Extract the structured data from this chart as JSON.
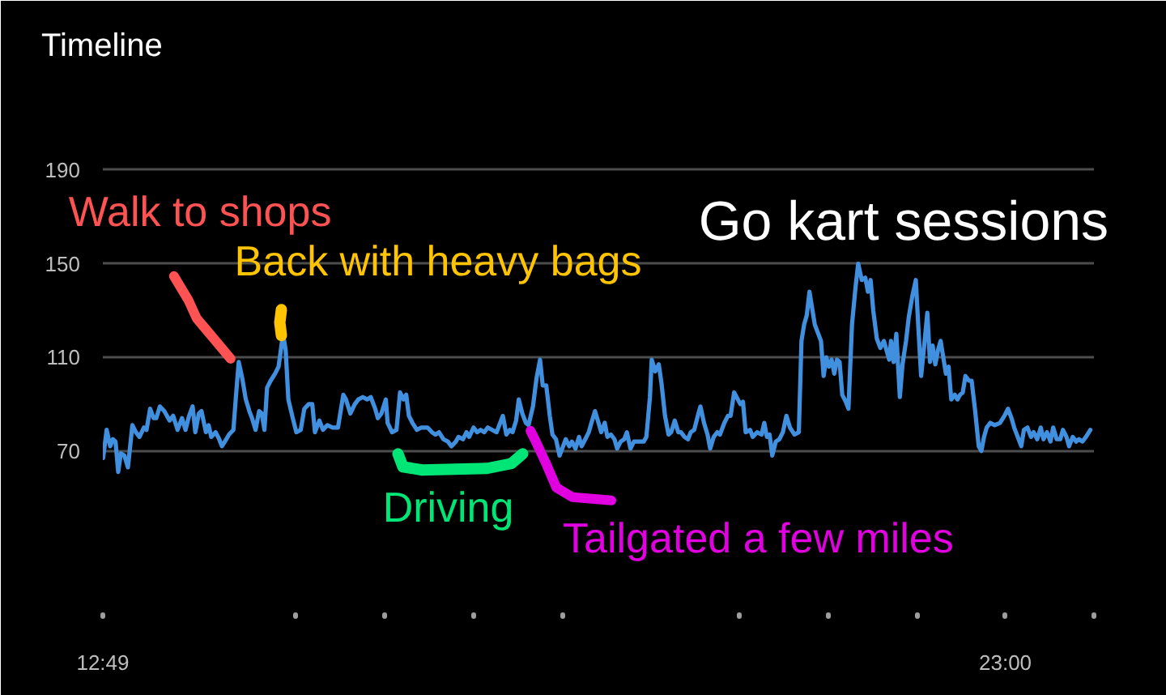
{
  "chart_data": {
    "type": "line",
    "title": "Timeline",
    "x": [
      12.82,
      12.86,
      12.9,
      12.93,
      12.96,
      12.99,
      13.02,
      13.06,
      13.1,
      13.15,
      13.19,
      13.23,
      13.28,
      13.31,
      13.35,
      13.39,
      13.42,
      13.46,
      13.51,
      13.57,
      13.61,
      13.66,
      13.71,
      13.75,
      13.79,
      13.83,
      13.86,
      13.9,
      13.93,
      13.98,
      14.01,
      14.04,
      14.09,
      14.13,
      14.16,
      14.21,
      14.24,
      14.29,
      14.32,
      14.35,
      14.39,
      14.43,
      14.47,
      14.5,
      14.54,
      14.58,
      14.61,
      14.64,
      14.67,
      14.71,
      14.76,
      14.8,
      14.85,
      14.88,
      14.91,
      14.96,
      15.0,
      15.05,
      15.09,
      15.14,
      15.18,
      15.21,
      15.26,
      15.3,
      15.35,
      15.41,
      15.47,
      15.53,
      15.56,
      15.61,
      15.66,
      15.7,
      15.75,
      15.8,
      15.84,
      15.89,
      15.92,
      15.96,
      16.01,
      16.03,
      16.08,
      16.13,
      16.17,
      16.21,
      16.24,
      16.27,
      16.31,
      16.36,
      16.41,
      16.48,
      16.53,
      16.57,
      16.61,
      16.66,
      16.71,
      16.75,
      16.8,
      16.83,
      16.88,
      16.92,
      16.95,
      17.0,
      17.04,
      17.08,
      17.12,
      17.16,
      17.21,
      17.26,
      17.3,
      17.33,
      17.37,
      17.41,
      17.44,
      17.48,
      17.51,
      17.55,
      17.59,
      17.62,
      17.67,
      17.71,
      17.75,
      17.78,
      17.82,
      17.86,
      17.89,
      17.93,
      17.97,
      18.0,
      18.04,
      18.08,
      18.11,
      18.15,
      18.19,
      18.22,
      18.26,
      18.3,
      18.33,
      18.37,
      18.41,
      18.44,
      18.48,
      18.51,
      18.55,
      18.59,
      18.62,
      18.66,
      18.7,
      18.73,
      18.77,
      18.81,
      18.84,
      18.88,
      18.92,
      18.95,
      18.99,
      19.01,
      19.05,
      19.09,
      19.12,
      19.16,
      19.2,
      19.23,
      19.27,
      19.31,
      19.34,
      19.38,
      19.42,
      19.45,
      19.49,
      19.53,
      19.56,
      19.6,
      19.64,
      19.67,
      19.71,
      19.75,
      19.78,
      19.83,
      19.87,
      19.9,
      19.94,
      20.01,
      20.04,
      20.07,
      20.12,
      20.15,
      20.2,
      20.25,
      20.28,
      20.31,
      20.34,
      20.37,
      20.41,
      20.45,
      20.49,
      20.53,
      20.57,
      20.62,
      20.67,
      20.7,
      20.73,
      20.76,
      20.79,
      20.82,
      20.85,
      20.88,
      20.92,
      20.95,
      20.98,
      21.01,
      21.04,
      21.07,
      21.1,
      21.13,
      21.16,
      21.2,
      21.23,
      21.27,
      21.31,
      21.34,
      21.38,
      21.42,
      21.45,
      21.48,
      21.51,
      21.55,
      21.59,
      21.63,
      21.66,
      21.69,
      21.71,
      21.74,
      21.77,
      21.81,
      21.84,
      21.88,
      21.91,
      21.95,
      21.99,
      22.02,
      22.05,
      22.09,
      22.12,
      22.15,
      22.18,
      22.21,
      22.24,
      22.27,
      22.3,
      22.33,
      22.36,
      22.39,
      22.43,
      22.46,
      22.49,
      22.52,
      22.55,
      22.59,
      22.62,
      22.66,
      22.7,
      22.73,
      22.76,
      22.79,
      22.83,
      22.88,
      22.94,
      22.99,
      23.03,
      23.07,
      23.1,
      23.14,
      23.18,
      23.21,
      23.25,
      23.29,
      23.32,
      23.36,
      23.4,
      23.43,
      23.47,
      23.51,
      23.54,
      23.58,
      23.62,
      23.65,
      23.69,
      23.72,
      23.76,
      23.8,
      23.83,
      23.87,
      23.91,
      23.96
    ],
    "series": [
      {
        "color": "#4190e0",
        "values": [
          67,
          79,
          72,
          75,
          74,
          61,
          69,
          68,
          63,
          81,
          78,
          76,
          80,
          79,
          88,
          84,
          84,
          89,
          87,
          83,
          85,
          79,
          84,
          79,
          85,
          89,
          78,
          86,
          87,
          78,
          81,
          76,
          78,
          75,
          72,
          75,
          77,
          79,
          94,
          108,
          101,
          92,
          87,
          84,
          79,
          87,
          86,
          79,
          97,
          100,
          103,
          106,
          120,
          113,
          92,
          84,
          78,
          79,
          88,
          90,
          90,
          78,
          83,
          79,
          81,
          80,
          80,
          94,
          92,
          86,
          90,
          92,
          93,
          92,
          93,
          88,
          84,
          86,
          92,
          82,
          78,
          79,
          95,
          92,
          94,
          85,
          82,
          79,
          80,
          80,
          78,
          77,
          78,
          75,
          74,
          72,
          74,
          76,
          75,
          78,
          76,
          80,
          78,
          79,
          78,
          80,
          79,
          78,
          82,
          85,
          77,
          79,
          78,
          83,
          92,
          86,
          82,
          81,
          89,
          101,
          109,
          98,
          98,
          85,
          77,
          75,
          68,
          71,
          75,
          72,
          74,
          71,
          76,
          72,
          75,
          78,
          82,
          87,
          82,
          78,
          82,
          76,
          77,
          75,
          71,
          74,
          75,
          78,
          71,
          74,
          74,
          74,
          74,
          76,
          93,
          109,
          104,
          107,
          99,
          85,
          77,
          78,
          83,
          78,
          78,
          76,
          75,
          78,
          79,
          85,
          89,
          82,
          77,
          71,
          76,
          78,
          77,
          82,
          85,
          85,
          95,
          90,
          91,
          78,
          79,
          76,
          78,
          77,
          82,
          76,
          77,
          68,
          74,
          75,
          78,
          85,
          80,
          77,
          78,
          117,
          124,
          128,
          138,
          131,
          124,
          121,
          117,
          102,
          110,
          106,
          109,
          103,
          109,
          108,
          94,
          91,
          88,
          124,
          140,
          150,
          143,
          144,
          138,
          143,
          130,
          118,
          114,
          117,
          113,
          109,
          117,
          108,
          120,
          93,
          107,
          117,
          127,
          136,
          143,
          122,
          102,
          117,
          129,
          108,
          115,
          107,
          113,
          117,
          110,
          103,
          106,
          92,
          94,
          92,
          94,
          95,
          102,
          100,
          100,
          87,
          72,
          70,
          76,
          80,
          82,
          81,
          82,
          85,
          88,
          84,
          80,
          76,
          72,
          79,
          80,
          76,
          78,
          75,
          80,
          75,
          78,
          74,
          80,
          75,
          75,
          79,
          76,
          72,
          76,
          74,
          75,
          74,
          76,
          79
        ]
      }
    ],
    "xlim": [
      12.8167,
      24
    ],
    "xticks": [
      {
        "value": 12.8167,
        "label": "12:49"
      },
      {
        "value": 15,
        "label": null
      },
      {
        "value": 16,
        "label": null
      },
      {
        "value": 17,
        "label": null
      },
      {
        "value": 18,
        "label": null
      },
      {
        "value": 20,
        "label": null
      },
      {
        "value": 21,
        "label": null
      },
      {
        "value": 22,
        "label": null
      },
      {
        "value": 23,
        "label": "23:00"
      },
      {
        "value": 24,
        "label": null
      }
    ],
    "ylim": [
      0,
      200
    ],
    "yticks": [
      70,
      110,
      150,
      190
    ],
    "grid": "y",
    "annotations": [
      {
        "text": "Walk to shops",
        "x": 14.35,
        "y": 108
      },
      {
        "text": "Back with heavy bags",
        "x": 14.85,
        "y": 120
      },
      {
        "text": "Driving",
        "x": 16.86,
        "y": 75
      },
      {
        "text": "Tailgated a few miles",
        "x": 17.66,
        "y": 80
      },
      {
        "text": "Go kart sessions",
        "x": 21.34,
        "y": 150
      }
    ]
  }
}
